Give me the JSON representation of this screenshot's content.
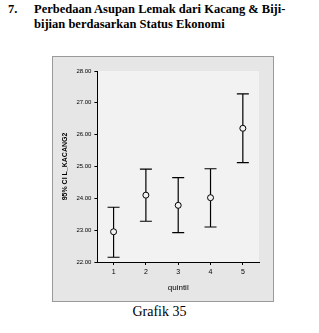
{
  "heading": {
    "number": "7.",
    "text": "Perbedaan Asupan Lemak dari Kacang & Biji-bijian berdasarkan Status Ekonomi"
  },
  "caption": "Grafik 35",
  "chart_data": {
    "type": "errorbar",
    "x_label": "quintil",
    "y_label": "95% CI L_KACANG2",
    "categories": [
      "1",
      "2",
      "3",
      "4",
      "5"
    ],
    "values": [
      22.95,
      24.1,
      23.78,
      24.02,
      26.2
    ],
    "error_low": [
      22.15,
      23.28,
      22.92,
      23.1,
      25.12
    ],
    "error_high": [
      23.72,
      24.92,
      24.65,
      24.93,
      27.28
    ],
    "color": "#000000",
    "marker": "circle",
    "ylim": [
      22,
      28
    ],
    "yticks": [
      {
        "value": 22,
        "label": "22.00"
      },
      {
        "value": 23,
        "label": "23.00"
      },
      {
        "value": 24,
        "label": "24.00"
      },
      {
        "value": 25,
        "label": "25.00"
      },
      {
        "value": 26,
        "label": "26.00"
      },
      {
        "value": 27,
        "label": "27.00"
      },
      {
        "value": 28,
        "label": "28.00"
      }
    ],
    "grid": false
  }
}
